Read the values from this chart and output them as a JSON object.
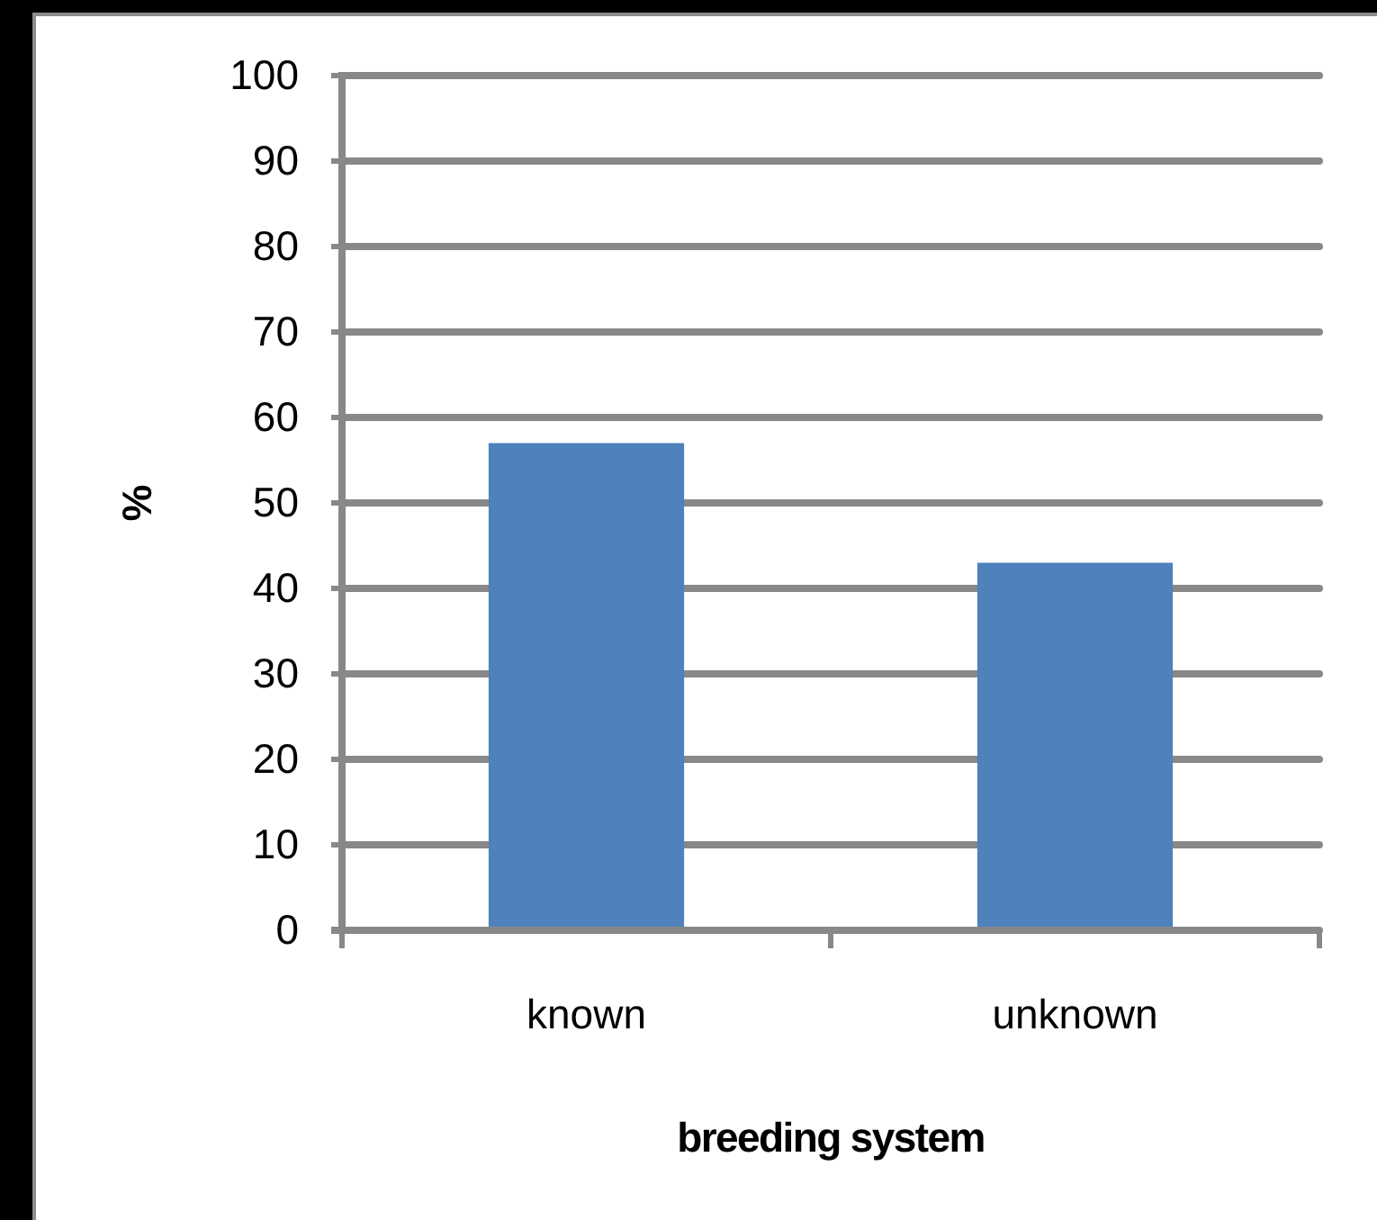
{
  "chart_data": {
    "type": "bar",
    "xlabel": "breeding system",
    "ylabel": "%",
    "categories": [
      "known",
      "unknown"
    ],
    "values": [
      57,
      43
    ],
    "color": "#4f81bd",
    "ylim": [
      0,
      100
    ],
    "yticks": [
      0,
      10,
      20,
      30,
      40,
      50,
      60,
      70,
      80,
      90,
      100
    ],
    "grid": "y"
  }
}
